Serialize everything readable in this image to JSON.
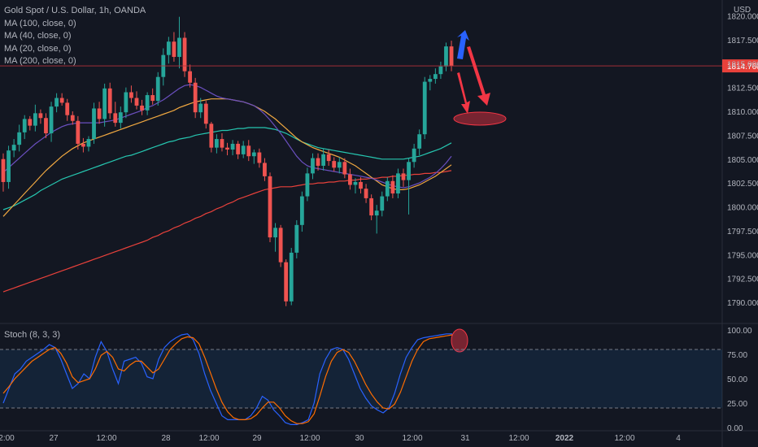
{
  "legend": {
    "title": "Gold Spot / U.S. Dollar, 1h, OANDA",
    "ma100": "MA (100, close, 0)",
    "ma40": "MA (40, close, 0)",
    "ma20": "MA (20, close, 0)",
    "ma200": "MA (200, close, 0)"
  },
  "currency": "USD",
  "stoch_label": "Stoch (8, 3, 3)",
  "colors": {
    "background": "#131722",
    "up": "#26a69a",
    "down": "#ef5350",
    "ma100": "#26c6b0",
    "ma40": "#f0a841",
    "ma20": "#6a4fbf",
    "ma200": "#e8413b",
    "stoch_k": "#2962ff",
    "stoch_d": "#ff6d00",
    "arrow_up": "#2962ff",
    "arrow_down": "#f23645"
  },
  "chart_data": [
    {
      "type": "candlestick",
      "title": "Gold Spot / U.S. Dollar, 1h, OANDA",
      "ylim": [
        1788.5,
        1820.3
      ],
      "y_ticks": [
        "1790.000",
        "1792.500",
        "1795.000",
        "1797.500",
        "1800.000",
        "1802.500",
        "1805.000",
        "1807.500",
        "1810.000",
        "1812.500",
        "1815.000",
        "1817.500",
        "1820.000"
      ],
      "last_price": "1814.760",
      "x_ticks": [
        "2:00",
        "27",
        "12:00",
        "28",
        "12:00",
        "29",
        "12:00",
        "30",
        "12:00",
        "31",
        "12:00",
        "2022",
        "12:00",
        "4"
      ],
      "candles_ohlc": [
        [
          1805.0,
          1805.6,
          1801.6,
          1802.6
        ],
        [
          1802.6,
          1806.4,
          1801.9,
          1805.9
        ],
        [
          1805.9,
          1807.1,
          1805.2,
          1806.5
        ],
        [
          1806.5,
          1808.6,
          1805.8,
          1807.8
        ],
        [
          1807.8,
          1809.6,
          1807.1,
          1809.2
        ],
        [
          1809.2,
          1809.5,
          1808.0,
          1808.5
        ],
        [
          1808.5,
          1810.7,
          1807.9,
          1809.8
        ],
        [
          1809.8,
          1810.2,
          1808.7,
          1809.3
        ],
        [
          1809.3,
          1809.8,
          1807.2,
          1807.7
        ],
        [
          1807.7,
          1811.0,
          1806.8,
          1810.5
        ],
        [
          1810.5,
          1811.9,
          1809.9,
          1811.4
        ],
        [
          1811.4,
          1811.9,
          1810.6,
          1810.9
        ],
        [
          1810.9,
          1811.3,
          1809.0,
          1809.6
        ],
        [
          1809.6,
          1810.0,
          1808.6,
          1809.0
        ],
        [
          1809.0,
          1809.5,
          1806.0,
          1806.6
        ],
        [
          1806.6,
          1807.2,
          1805.7,
          1806.3
        ],
        [
          1806.3,
          1807.4,
          1805.8,
          1807.1
        ],
        [
          1807.1,
          1810.9,
          1806.6,
          1810.3
        ],
        [
          1810.3,
          1811.0,
          1808.7,
          1809.2
        ],
        [
          1809.2,
          1812.9,
          1808.4,
          1812.4
        ],
        [
          1812.4,
          1813.0,
          1809.2,
          1809.8
        ],
        [
          1809.8,
          1811.0,
          1808.4,
          1808.8
        ],
        [
          1808.8,
          1810.5,
          1808.2,
          1809.9
        ],
        [
          1809.9,
          1812.5,
          1809.3,
          1812.0
        ],
        [
          1812.0,
          1812.7,
          1810.9,
          1811.4
        ],
        [
          1811.4,
          1812.1,
          1810.2,
          1810.6
        ],
        [
          1810.6,
          1811.2,
          1809.6,
          1810.1
        ],
        [
          1810.1,
          1812.0,
          1809.6,
          1811.7
        ],
        [
          1811.7,
          1812.4,
          1810.7,
          1811.1
        ],
        [
          1811.1,
          1814.1,
          1810.6,
          1813.6
        ],
        [
          1813.6,
          1816.6,
          1812.7,
          1815.9
        ],
        [
          1815.9,
          1817.8,
          1815.0,
          1817.3
        ],
        [
          1817.3,
          1818.3,
          1815.2,
          1815.7
        ],
        [
          1815.7,
          1819.9,
          1814.5,
          1817.7
        ],
        [
          1817.7,
          1818.3,
          1813.6,
          1814.2
        ],
        [
          1814.2,
          1814.9,
          1812.5,
          1813.0
        ],
        [
          1813.0,
          1813.5,
          1809.3,
          1809.9
        ],
        [
          1809.9,
          1811.4,
          1809.3,
          1810.8
        ],
        [
          1810.8,
          1811.1,
          1808.2,
          1808.7
        ],
        [
          1808.7,
          1808.9,
          1805.7,
          1806.2
        ],
        [
          1806.2,
          1807.6,
          1805.6,
          1807.1
        ],
        [
          1807.1,
          1807.7,
          1805.8,
          1806.2
        ],
        [
          1806.2,
          1806.7,
          1805.4,
          1806.0
        ],
        [
          1806.0,
          1807.0,
          1805.4,
          1806.6
        ],
        [
          1806.6,
          1806.9,
          1805.0,
          1805.5
        ],
        [
          1805.5,
          1806.9,
          1805.1,
          1806.4
        ],
        [
          1806.4,
          1807.0,
          1804.8,
          1805.3
        ],
        [
          1805.3,
          1806.0,
          1804.5,
          1805.7
        ],
        [
          1805.7,
          1806.1,
          1804.1,
          1804.6
        ],
        [
          1804.6,
          1805.1,
          1802.7,
          1803.2
        ],
        [
          1803.2,
          1803.6,
          1796.3,
          1796.8
        ],
        [
          1796.8,
          1798.3,
          1795.3,
          1797.8
        ],
        [
          1797.8,
          1798.1,
          1793.7,
          1794.2
        ],
        [
          1794.2,
          1794.5,
          1789.6,
          1790.1
        ],
        [
          1790.1,
          1795.7,
          1789.7,
          1795.2
        ],
        [
          1795.2,
          1798.6,
          1794.6,
          1798.1
        ],
        [
          1798.1,
          1801.6,
          1797.4,
          1801.1
        ],
        [
          1801.1,
          1804.1,
          1800.6,
          1803.5
        ],
        [
          1803.5,
          1805.6,
          1802.9,
          1805.1
        ],
        [
          1805.1,
          1805.6,
          1803.8,
          1804.3
        ],
        [
          1804.3,
          1806.1,
          1803.8,
          1805.5
        ],
        [
          1805.5,
          1806.0,
          1804.3,
          1804.8
        ],
        [
          1804.8,
          1805.2,
          1803.7,
          1804.1
        ],
        [
          1804.1,
          1805.2,
          1803.5,
          1804.7
        ],
        [
          1804.7,
          1805.1,
          1803.0,
          1803.4
        ],
        [
          1803.4,
          1804.0,
          1801.8,
          1802.3
        ],
        [
          1802.3,
          1803.0,
          1801.4,
          1802.6
        ],
        [
          1802.6,
          1803.1,
          1801.4,
          1801.9
        ],
        [
          1801.9,
          1802.4,
          1800.4,
          1800.9
        ],
        [
          1800.9,
          1801.3,
          1798.6,
          1799.1
        ],
        [
          1799.1,
          1800.2,
          1797.2,
          1799.6
        ],
        [
          1799.6,
          1801.6,
          1799.0,
          1801.1
        ],
        [
          1801.1,
          1803.1,
          1800.6,
          1802.7
        ],
        [
          1802.7,
          1803.3,
          1800.9,
          1801.4
        ],
        [
          1801.4,
          1804.0,
          1800.9,
          1803.5
        ],
        [
          1803.5,
          1804.0,
          1802.1,
          1802.8
        ],
        [
          1802.8,
          1805.1,
          1799.2,
          1804.7
        ],
        [
          1804.7,
          1806.6,
          1804.1,
          1806.1
        ],
        [
          1806.1,
          1808.1,
          1805.4,
          1807.6
        ],
        [
          1807.6,
          1813.6,
          1807.1,
          1813.1
        ],
        [
          1813.1,
          1813.8,
          1812.2,
          1813.4
        ],
        [
          1813.4,
          1814.5,
          1812.9,
          1813.9
        ],
        [
          1813.9,
          1815.2,
          1813.4,
          1814.7
        ],
        [
          1814.7,
          1817.2,
          1814.2,
          1816.8
        ],
        [
          1816.8,
          1817.4,
          1814.2,
          1814.76
        ]
      ],
      "ma100": [
        1799.7,
        1799.9,
        1800.1,
        1800.4,
        1800.7,
        1801.0,
        1801.3,
        1801.7,
        1802.0,
        1802.3,
        1802.6,
        1802.9,
        1803.1,
        1803.3,
        1803.5,
        1803.7,
        1803.9,
        1804.1,
        1804.3,
        1804.5,
        1804.7,
        1804.9,
        1805.1,
        1805.3,
        1805.4,
        1805.6,
        1805.8,
        1806.0,
        1806.2,
        1806.4,
        1806.6,
        1806.8,
        1806.9,
        1807.1,
        1807.2,
        1807.3,
        1807.5,
        1807.6,
        1807.7,
        1807.8,
        1807.9,
        1808.0,
        1808.0,
        1808.1,
        1808.2,
        1808.2,
        1808.3,
        1808.3,
        1808.3,
        1808.3,
        1808.2,
        1808.1,
        1807.9,
        1807.7,
        1807.4,
        1807.1,
        1806.8,
        1806.6,
        1806.4,
        1806.2,
        1806.1,
        1806.0,
        1805.9,
        1805.8,
        1805.7,
        1805.6,
        1805.5,
        1805.4,
        1805.3,
        1805.2,
        1805.1,
        1805.0,
        1805.0,
        1805.0,
        1805.0,
        1805.0,
        1805.1,
        1805.2,
        1805.3,
        1805.5,
        1805.7,
        1805.9,
        1806.1,
        1806.4,
        1806.7
      ],
      "ma40": [
        1799.0,
        1799.6,
        1800.2,
        1800.8,
        1801.4,
        1802.0,
        1802.6,
        1803.2,
        1803.8,
        1804.3,
        1804.8,
        1805.3,
        1805.7,
        1806.1,
        1806.4,
        1806.7,
        1806.9,
        1807.1,
        1807.3,
        1807.5,
        1807.7,
        1807.9,
        1808.1,
        1808.3,
        1808.5,
        1808.7,
        1808.9,
        1809.1,
        1809.3,
        1809.5,
        1809.7,
        1809.9,
        1810.1,
        1810.4,
        1810.6,
        1810.8,
        1811.0,
        1811.1,
        1811.2,
        1811.3,
        1811.3,
        1811.3,
        1811.3,
        1811.2,
        1811.1,
        1811.0,
        1810.8,
        1810.6,
        1810.3,
        1810.0,
        1809.6,
        1809.2,
        1808.7,
        1808.2,
        1807.7,
        1807.2,
        1806.8,
        1806.5,
        1806.2,
        1806.0,
        1805.8,
        1805.6,
        1805.4,
        1805.2,
        1804.9,
        1804.6,
        1804.3,
        1803.9,
        1803.5,
        1803.1,
        1802.7,
        1802.3,
        1802.1,
        1801.9,
        1801.8,
        1801.8,
        1801.9,
        1802.1,
        1802.3,
        1802.6,
        1802.9,
        1803.2,
        1803.6,
        1804.0,
        1804.4
      ],
      "ma20": [
        1803.6,
        1804.1,
        1804.6,
        1805.1,
        1805.6,
        1806.1,
        1806.6,
        1807.0,
        1807.4,
        1807.8,
        1808.1,
        1808.4,
        1808.6,
        1808.7,
        1808.8,
        1808.8,
        1808.8,
        1808.8,
        1808.8,
        1808.9,
        1809.0,
        1809.1,
        1809.3,
        1809.5,
        1809.7,
        1809.9,
        1810.1,
        1810.4,
        1810.6,
        1810.9,
        1811.2,
        1811.6,
        1812.0,
        1812.4,
        1812.7,
        1812.8,
        1812.7,
        1812.5,
        1812.2,
        1811.9,
        1811.6,
        1811.4,
        1811.3,
        1811.2,
        1811.1,
        1811.0,
        1810.8,
        1810.6,
        1810.2,
        1809.7,
        1809.1,
        1808.4,
        1807.7,
        1806.9,
        1806.1,
        1805.3,
        1804.7,
        1804.3,
        1804.1,
        1804.0,
        1803.9,
        1803.8,
        1803.7,
        1803.6,
        1803.5,
        1803.4,
        1803.3,
        1803.2,
        1803.1,
        1803.0,
        1802.8,
        1802.6,
        1802.4,
        1802.2,
        1802.1,
        1802.0,
        1802.1,
        1802.3,
        1802.5,
        1802.8,
        1803.1,
        1803.5,
        1804.0,
        1804.6,
        1805.3
      ],
      "ma200": [
        1791.1,
        1791.3,
        1791.5,
        1791.7,
        1791.9,
        1792.1,
        1792.3,
        1792.5,
        1792.7,
        1792.9,
        1793.1,
        1793.3,
        1793.5,
        1793.7,
        1793.9,
        1794.1,
        1794.3,
        1794.5,
        1794.7,
        1794.9,
        1795.1,
        1795.3,
        1795.5,
        1795.7,
        1795.9,
        1796.1,
        1796.3,
        1796.5,
        1796.8,
        1797.0,
        1797.3,
        1797.5,
        1797.8,
        1798.0,
        1798.3,
        1798.5,
        1798.8,
        1799.0,
        1799.3,
        1799.5,
        1799.8,
        1800.0,
        1800.3,
        1800.5,
        1800.8,
        1801.0,
        1801.2,
        1801.4,
        1801.6,
        1801.8,
        1801.9,
        1802.0,
        1802.1,
        1802.1,
        1802.1,
        1802.2,
        1802.3,
        1802.4,
        1802.4,
        1802.5,
        1802.5,
        1802.6,
        1802.6,
        1802.7,
        1802.7,
        1802.8,
        1802.8,
        1802.9,
        1802.9,
        1803.0,
        1803.0,
        1803.1,
        1803.1,
        1803.2,
        1803.2,
        1803.3,
        1803.3,
        1803.4,
        1803.4,
        1803.5,
        1803.5,
        1803.6,
        1803.6,
        1803.7,
        1803.8
      ]
    },
    {
      "type": "line",
      "title": "Stoch (8, 3, 3)",
      "ylim": [
        0,
        100
      ],
      "y_ticks": [
        "100.00",
        "75.00",
        "50.00",
        "25.00",
        "0.00"
      ],
      "bands": [
        20,
        80
      ],
      "series": [
        {
          "name": "%K",
          "values": [
            25,
            40,
            55,
            60,
            68,
            72,
            76,
            80,
            85,
            82,
            70,
            55,
            40,
            45,
            55,
            50,
            72,
            88,
            78,
            60,
            45,
            68,
            70,
            72,
            66,
            52,
            50,
            70,
            82,
            88,
            92,
            95,
            96,
            90,
            76,
            55,
            38,
            25,
            12,
            8,
            8,
            8,
            8,
            12,
            20,
            32,
            28,
            18,
            12,
            5,
            3,
            3,
            5,
            8,
            25,
            55,
            70,
            80,
            82,
            80,
            70,
            55,
            40,
            30,
            22,
            18,
            15,
            20,
            35,
            55,
            72,
            82,
            90,
            92,
            93,
            94,
            95,
            96,
            96
          ]
        },
        {
          "name": "%D",
          "values": [
            35,
            42,
            50,
            56,
            62,
            68,
            72,
            76,
            80,
            82,
            76,
            66,
            52,
            46,
            48,
            50,
            60,
            74,
            78,
            72,
            60,
            58,
            64,
            68,
            68,
            62,
            56,
            60,
            70,
            80,
            86,
            91,
            93,
            92,
            86,
            72,
            56,
            40,
            26,
            16,
            10,
            8,
            8,
            9,
            13,
            20,
            26,
            26,
            20,
            12,
            7,
            4,
            4,
            6,
            14,
            32,
            52,
            68,
            77,
            80,
            77,
            68,
            56,
            44,
            34,
            26,
            20,
            19,
            24,
            36,
            52,
            68,
            80,
            88,
            91,
            92,
            93,
            94,
            95
          ]
        }
      ]
    }
  ]
}
